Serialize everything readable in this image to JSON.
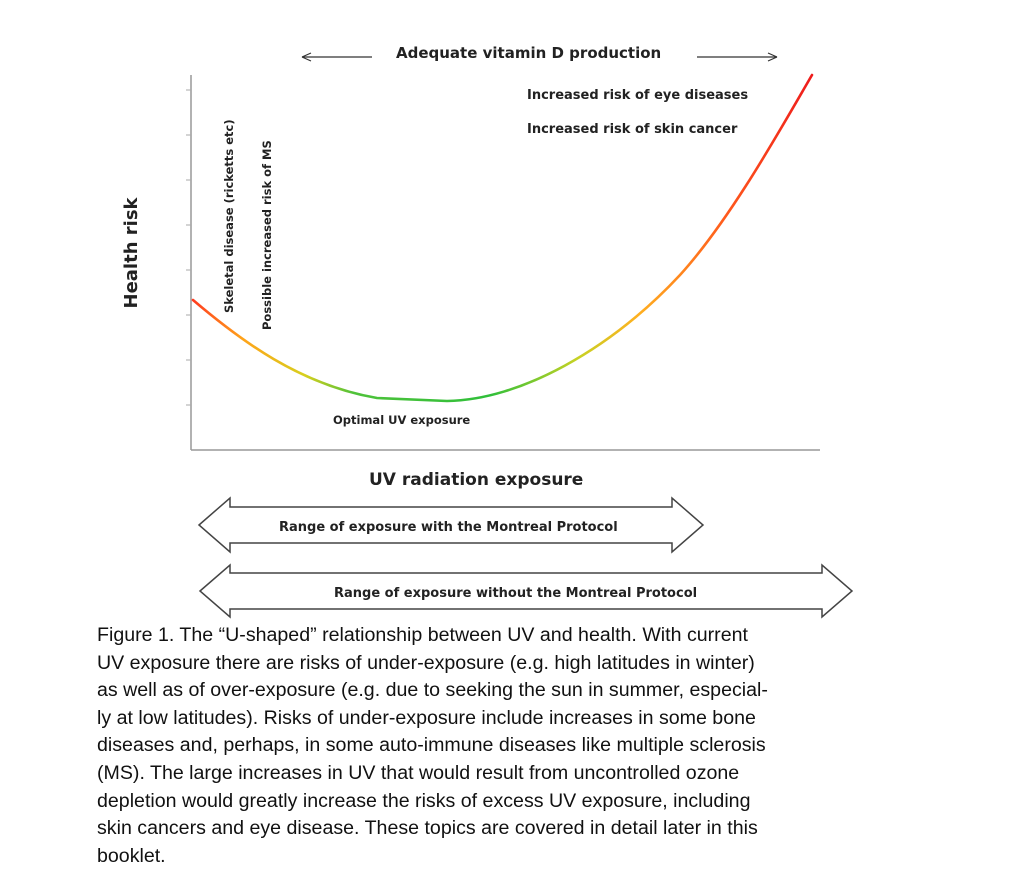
{
  "diagram": {
    "top_label": "Adequate vitamin D production",
    "y_axis_label": "Health risk",
    "x_axis_label": "UV radiation exposure",
    "left_annotations": [
      "Skeletal disease (ricketts etc)",
      "Possible increased risk of MS"
    ],
    "right_annotations": [
      "Increased risk of eye diseases",
      "Increased risk of skin cancer"
    ],
    "optimum_label": "Optimal UV exposure",
    "range_with": "Range of exposure with the Montreal Protocol",
    "range_without": "Range of exposure without the Montreal Protocol",
    "curve_colors": {
      "low": "#ff3b1f",
      "mid": "#2fbf3a",
      "high": "#ee1c1c",
      "amber": "#ffb020"
    }
  },
  "caption_lines": [
    "Figure 1. The “U-shaped” relationship between UV and health. With current",
    "UV exposure there are risks of under-exposure (e.g. high latitudes in winter)",
    "as well as of over-exposure (e.g. due to seeking the sun in summer, especial-",
    "ly at low latitudes).  Risks of under-exposure include increases in some bone",
    "diseases and, perhaps, in some auto-immune diseases like multiple sclerosis",
    "(MS). The large increases in UV that would result from uncontrolled ozone",
    "depletion would greatly increase the risks of excess UV exposure, including",
    "skin cancers and eye disease. These topics are covered in detail later in this",
    "booklet."
  ]
}
